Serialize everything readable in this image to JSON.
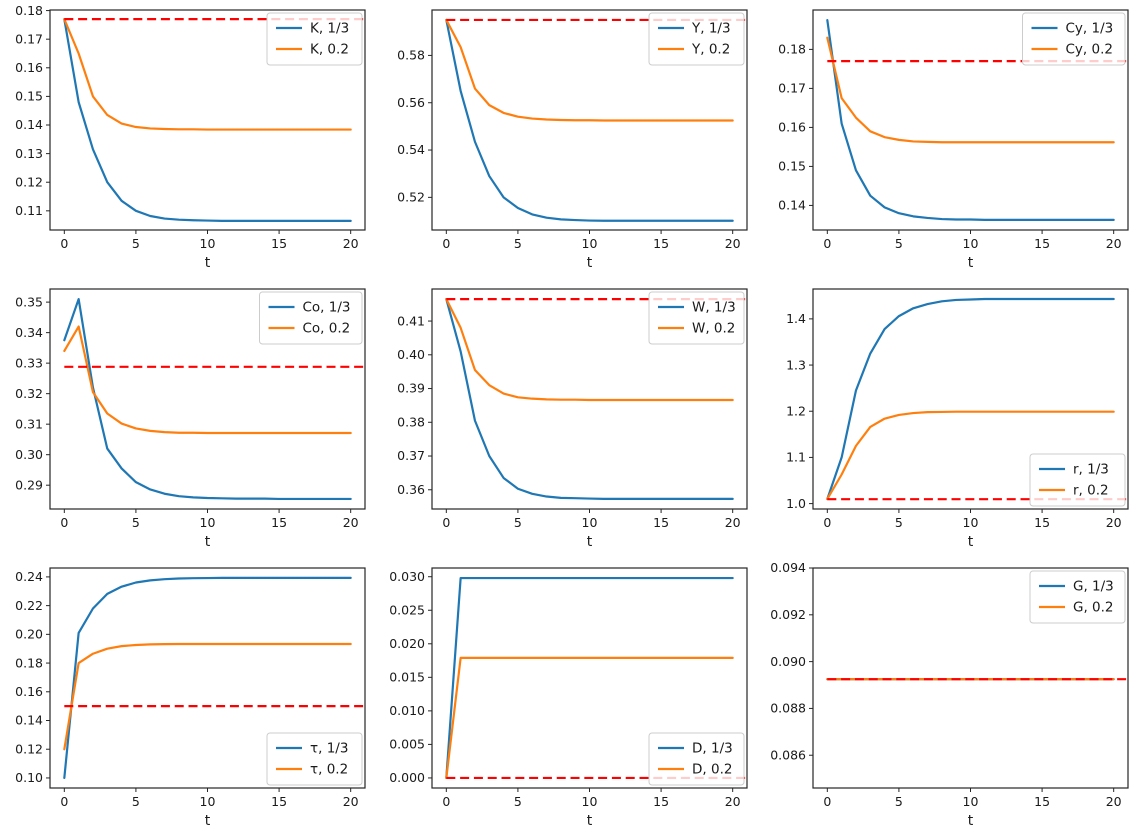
{
  "figure": {
    "background": "#ffffff",
    "accent_colors": {
      "series_blue": "#1f77b4",
      "series_orange": "#ff7f0e",
      "reference_red": "#ff0000"
    },
    "frame_color": "#262626",
    "text_color": "#1a1a1a",
    "legend_border_color": "#cccccc",
    "xlim": [
      -1,
      21
    ],
    "t": [
      0,
      1,
      2,
      3,
      4,
      5,
      6,
      7,
      8,
      9,
      10,
      11,
      12,
      13,
      14,
      15,
      16,
      17,
      18,
      19,
      20
    ],
    "xticks": {
      "values": [
        0,
        5,
        10,
        15,
        20
      ],
      "labels": [
        "0",
        "5",
        "10",
        "15",
        "20"
      ]
    }
  },
  "chart_data": [
    {
      "type": "line",
      "variable": "K",
      "xlabel": "t",
      "ylim": [
        0.1033,
        0.1802
      ],
      "ytick_values": [
        0.11,
        0.12,
        0.13,
        0.14,
        0.15,
        0.16,
        0.17,
        0.18
      ],
      "ytick_labels": [
        "0.11",
        "0.12",
        "0.13",
        "0.14",
        "0.15",
        "0.16",
        "0.17",
        "0.18"
      ],
      "legend": {
        "loc": "upper-right",
        "labels": [
          "K, 1/3",
          "K, 0.2"
        ]
      },
      "hline": {
        "value": 0.177,
        "color": "#ff0000",
        "style": "dashed",
        "x_start": 0,
        "x_end": 21
      },
      "series": [
        {
          "name": "K, 1/3",
          "color": "#1f77b4",
          "values": [
            0.177,
            0.148,
            0.1315,
            0.12,
            0.1135,
            0.11,
            0.1082,
            0.1073,
            0.1069,
            0.1067,
            0.1066,
            0.1065,
            0.1065,
            0.1065,
            0.1065,
            0.1065,
            0.1065,
            0.1065,
            0.1065,
            0.1065,
            0.1065
          ]
        },
        {
          "name": "K, 0.2",
          "color": "#ff7f0e",
          "values": [
            0.177,
            0.165,
            0.15,
            0.1435,
            0.1405,
            0.1393,
            0.1388,
            0.1386,
            0.1385,
            0.1385,
            0.1384,
            0.1384,
            0.1384,
            0.1384,
            0.1384,
            0.1384,
            0.1384,
            0.1384,
            0.1384,
            0.1384,
            0.1384
          ]
        }
      ]
    },
    {
      "type": "line",
      "variable": "Y",
      "xlabel": "t",
      "ylim": [
        0.5062,
        0.5992
      ],
      "ytick_values": [
        0.52,
        0.54,
        0.56,
        0.58
      ],
      "ytick_labels": [
        "0.52",
        "0.54",
        "0.56",
        "0.58"
      ],
      "legend": {
        "loc": "upper-right",
        "labels": [
          "Y, 1/3",
          "Y, 0.2"
        ]
      },
      "hline": {
        "value": 0.595,
        "color": "#ff0000",
        "style": "dashed",
        "x_start": 0,
        "x_end": 21
      },
      "series": [
        {
          "name": "Y, 1/3",
          "color": "#1f77b4",
          "values": [
            0.595,
            0.565,
            0.5435,
            0.529,
            0.52,
            0.5155,
            0.5128,
            0.5114,
            0.5107,
            0.5104,
            0.5102,
            0.5101,
            0.5101,
            0.5101,
            0.5101,
            0.5101,
            0.5101,
            0.5101,
            0.5101,
            0.5101,
            0.5101
          ]
        },
        {
          "name": "Y, 0.2",
          "color": "#ff7f0e",
          "values": [
            0.595,
            0.5835,
            0.566,
            0.559,
            0.5557,
            0.5541,
            0.5533,
            0.5529,
            0.5527,
            0.5526,
            0.5526,
            0.5525,
            0.5525,
            0.5525,
            0.5525,
            0.5525,
            0.5525,
            0.5525,
            0.5525,
            0.5525,
            0.5525
          ]
        }
      ]
    },
    {
      "type": "line",
      "variable": "Cy",
      "xlabel": "t",
      "ylim": [
        0.1337,
        0.1901
      ],
      "ytick_values": [
        0.14,
        0.15,
        0.16,
        0.17,
        0.18
      ],
      "ytick_labels": [
        "0.14",
        "0.15",
        "0.16",
        "0.17",
        "0.18"
      ],
      "legend": {
        "loc": "upper-right",
        "labels": [
          "Cy, 1/3",
          "Cy, 0.2"
        ]
      },
      "hline": {
        "value": 0.177,
        "color": "#ff0000",
        "style": "dashed",
        "x_start": 0,
        "x_end": 21
      },
      "series": [
        {
          "name": "Cy, 1/3",
          "color": "#1f77b4",
          "values": [
            0.1875,
            0.161,
            0.149,
            0.1425,
            0.1395,
            0.138,
            0.1372,
            0.1368,
            0.1365,
            0.1364,
            0.1364,
            0.1363,
            0.1363,
            0.1363,
            0.1363,
            0.1363,
            0.1363,
            0.1363,
            0.1363,
            0.1363,
            0.1363
          ]
        },
        {
          "name": "Cy, 0.2",
          "color": "#ff7f0e",
          "values": [
            0.183,
            0.1675,
            0.1625,
            0.159,
            0.1575,
            0.1568,
            0.1564,
            0.1563,
            0.1562,
            0.1562,
            0.1562,
            0.1562,
            0.1562,
            0.1562,
            0.1562,
            0.1562,
            0.1562,
            0.1562,
            0.1562,
            0.1562,
            0.1562
          ]
        }
      ]
    },
    {
      "type": "line",
      "variable": "Co",
      "xlabel": "t",
      "ylim": [
        0.2822,
        0.3543
      ],
      "ytick_values": [
        0.29,
        0.3,
        0.31,
        0.32,
        0.33,
        0.34,
        0.35
      ],
      "ytick_labels": [
        "0.29",
        "0.30",
        "0.31",
        "0.32",
        "0.33",
        "0.34",
        "0.35"
      ],
      "legend": {
        "loc": "upper-right",
        "labels": [
          "Co, 1/3",
          "Co, 0.2"
        ]
      },
      "hline": {
        "value": 0.3288,
        "color": "#ff0000",
        "style": "dashed",
        "x_start": 0,
        "x_end": 21
      },
      "series": [
        {
          "name": "Co, 1/3",
          "color": "#1f77b4",
          "values": [
            0.3375,
            0.351,
            0.322,
            0.302,
            0.2955,
            0.291,
            0.2886,
            0.2872,
            0.2864,
            0.286,
            0.2858,
            0.2857,
            0.2856,
            0.2856,
            0.2856,
            0.2855,
            0.2855,
            0.2855,
            0.2855,
            0.2855,
            0.2855
          ]
        },
        {
          "name": "Co, 0.2",
          "color": "#ff7f0e",
          "values": [
            0.334,
            0.342,
            0.3205,
            0.3135,
            0.3102,
            0.3086,
            0.3078,
            0.3074,
            0.3072,
            0.3072,
            0.3071,
            0.3071,
            0.3071,
            0.3071,
            0.3071,
            0.3071,
            0.3071,
            0.3071,
            0.3071,
            0.3071,
            0.3071
          ]
        }
      ]
    },
    {
      "type": "line",
      "variable": "W",
      "xlabel": "t",
      "ylim": [
        0.3543,
        0.4195
      ],
      "ytick_values": [
        0.36,
        0.37,
        0.38,
        0.39,
        0.4,
        0.41
      ],
      "ytick_labels": [
        "0.36",
        "0.37",
        "0.38",
        "0.39",
        "0.40",
        "0.41"
      ],
      "legend": {
        "loc": "upper-right",
        "labels": [
          "W, 1/3",
          "W, 0.2"
        ]
      },
      "hline": {
        "value": 0.4165,
        "color": "#ff0000",
        "style": "dashed",
        "x_start": 0,
        "x_end": 21
      },
      "series": [
        {
          "name": "W, 1/3",
          "color": "#1f77b4",
          "values": [
            0.4165,
            0.401,
            0.3805,
            0.37,
            0.3635,
            0.3603,
            0.3588,
            0.358,
            0.3576,
            0.3575,
            0.3574,
            0.3573,
            0.3573,
            0.3573,
            0.3573,
            0.3573,
            0.3573,
            0.3573,
            0.3573,
            0.3573,
            0.3573
          ]
        },
        {
          "name": "W, 0.2",
          "color": "#ff7f0e",
          "values": [
            0.4165,
            0.408,
            0.3955,
            0.391,
            0.3885,
            0.3874,
            0.387,
            0.3868,
            0.3867,
            0.3867,
            0.3866,
            0.3866,
            0.3866,
            0.3866,
            0.3866,
            0.3866,
            0.3866,
            0.3866,
            0.3866,
            0.3866,
            0.3866
          ]
        }
      ]
    },
    {
      "type": "line",
      "variable": "r",
      "xlabel": "t",
      "ylim": [
        0.9883,
        1.4647
      ],
      "ytick_values": [
        1.0,
        1.1,
        1.2,
        1.3,
        1.4
      ],
      "ytick_labels": [
        "1.0",
        "1.1",
        "1.2",
        "1.3",
        "1.4"
      ],
      "legend": {
        "loc": "lower-right",
        "labels": [
          "r, 1/3",
          "r, 0.2"
        ]
      },
      "hline": {
        "value": 1.0095,
        "color": "#ff0000",
        "style": "dashed",
        "x_start": 0,
        "x_end": 21
      },
      "series": [
        {
          "name": "r, 1/3",
          "color": "#1f77b4",
          "values": [
            1.01,
            1.1,
            1.245,
            1.325,
            1.378,
            1.406,
            1.423,
            1.432,
            1.438,
            1.441,
            1.442,
            1.443,
            1.443,
            1.443,
            1.443,
            1.443,
            1.443,
            1.443,
            1.443,
            1.443,
            1.443
          ]
        },
        {
          "name": "r, 0.2",
          "color": "#ff7f0e",
          "values": [
            1.01,
            1.063,
            1.125,
            1.166,
            1.184,
            1.192,
            1.196,
            1.198,
            1.1985,
            1.199,
            1.199,
            1.199,
            1.199,
            1.199,
            1.199,
            1.199,
            1.199,
            1.199,
            1.199,
            1.199,
            1.199
          ]
        }
      ]
    },
    {
      "type": "line",
      "variable": "τ",
      "xlabel": "t",
      "ylim": [
        0.093,
        0.2462
      ],
      "ytick_values": [
        0.1,
        0.12,
        0.14,
        0.16,
        0.18,
        0.2,
        0.22,
        0.24
      ],
      "ytick_labels": [
        "0.10",
        "0.12",
        "0.14",
        "0.16",
        "0.18",
        "0.20",
        "0.22",
        "0.24"
      ],
      "legend": {
        "loc": "lower-right",
        "labels": [
          "τ, 1/3",
          "τ, 0.2"
        ]
      },
      "hline": {
        "value": 0.15,
        "color": "#ff0000",
        "style": "dashed",
        "x_start": 0,
        "x_end": 21
      },
      "series": [
        {
          "name": "τ, 1/3",
          "color": "#1f77b4",
          "values": [
            0.1,
            0.201,
            0.218,
            0.2282,
            0.2332,
            0.2361,
            0.2376,
            0.2384,
            0.2389,
            0.2391,
            0.2392,
            0.2393,
            0.2393,
            0.2393,
            0.2393,
            0.2393,
            0.2393,
            0.2393,
            0.2393,
            0.2393,
            0.2393
          ]
        },
        {
          "name": "τ, 0.2",
          "color": "#ff7f0e",
          "values": [
            0.12,
            0.18,
            0.1865,
            0.19,
            0.1918,
            0.1926,
            0.193,
            0.1932,
            0.1933,
            0.1933,
            0.1933,
            0.1933,
            0.1933,
            0.1933,
            0.1933,
            0.1933,
            0.1933,
            0.1933,
            0.1933,
            0.1933,
            0.1933
          ]
        }
      ]
    },
    {
      "type": "line",
      "variable": "D",
      "xlabel": "t",
      "ylim": [
        -0.0015,
        0.0313
      ],
      "ytick_values": [
        0.0,
        0.005,
        0.01,
        0.015,
        0.02,
        0.025,
        0.03
      ],
      "ytick_labels": [
        "0.000",
        "0.005",
        "0.010",
        "0.015",
        "0.020",
        "0.025",
        "0.030"
      ],
      "legend": {
        "loc": "lower-right",
        "labels": [
          "D, 1/3",
          "D, 0.2"
        ]
      },
      "hline": {
        "value": 0.0,
        "color": "#ff0000",
        "style": "dashed",
        "x_start": 0,
        "x_end": 21
      },
      "series": [
        {
          "name": "D, 1/3",
          "color": "#1f77b4",
          "values": [
            0.0,
            0.0298,
            0.0298,
            0.0298,
            0.0298,
            0.0298,
            0.0298,
            0.0298,
            0.0298,
            0.0298,
            0.0298,
            0.0298,
            0.0298,
            0.0298,
            0.0298,
            0.0298,
            0.0298,
            0.0298,
            0.0298,
            0.0298,
            0.0298
          ]
        },
        {
          "name": "D, 0.2",
          "color": "#ff7f0e",
          "values": [
            0.0,
            0.0179,
            0.0179,
            0.0179,
            0.0179,
            0.0179,
            0.0179,
            0.0179,
            0.0179,
            0.0179,
            0.0179,
            0.0179,
            0.0179,
            0.0179,
            0.0179,
            0.0179,
            0.0179,
            0.0179,
            0.0179,
            0.0179,
            0.0179
          ]
        }
      ]
    },
    {
      "type": "line",
      "variable": "G",
      "xlabel": "t",
      "ylim": [
        0.0846,
        0.094
      ],
      "ytick_values": [
        0.086,
        0.088,
        0.09,
        0.092,
        0.094
      ],
      "ytick_labels": [
        "0.086",
        "0.088",
        "0.090",
        "0.092",
        "0.094"
      ],
      "legend": {
        "loc": "upper-right",
        "labels": [
          "G, 1/3",
          "G, 0.2"
        ]
      },
      "hline": {
        "value": 0.08925,
        "color": "#ff0000",
        "style": "dashed",
        "x_start": 0,
        "x_end": 21
      },
      "series": [
        {
          "name": "G, 1/3",
          "color": "#1f77b4",
          "values": [
            0.08925,
            0.08925,
            0.08925,
            0.08925,
            0.08925,
            0.08925,
            0.08925,
            0.08925,
            0.08925,
            0.08925,
            0.08925,
            0.08925,
            0.08925,
            0.08925,
            0.08925,
            0.08925,
            0.08925,
            0.08925,
            0.08925,
            0.08925,
            0.08925
          ]
        },
        {
          "name": "G, 0.2",
          "color": "#ff7f0e",
          "values": [
            0.08925,
            0.08925,
            0.08925,
            0.08925,
            0.08925,
            0.08925,
            0.08925,
            0.08925,
            0.08925,
            0.08925,
            0.08925,
            0.08925,
            0.08925,
            0.08925,
            0.08925,
            0.08925,
            0.08925,
            0.08925,
            0.08925,
            0.08925,
            0.08925
          ]
        }
      ]
    }
  ]
}
